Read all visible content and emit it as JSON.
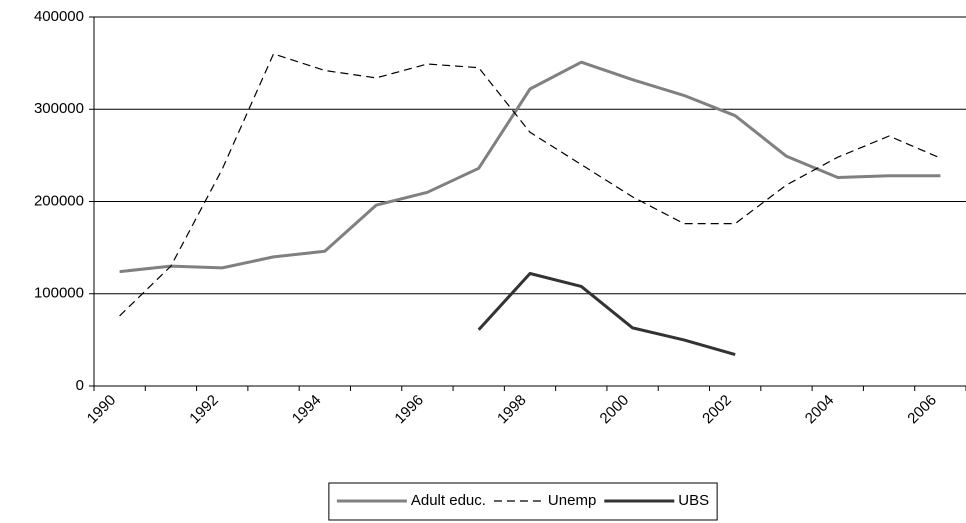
{
  "chart_data": {
    "type": "line",
    "categories": [
      "1990",
      null,
      "1992",
      null,
      "1994",
      null,
      "1996",
      null,
      "1998",
      null,
      "2000",
      null,
      "2002",
      null,
      "2004",
      null,
      "2006"
    ],
    "series": [
      {
        "name": "Adult educ.",
        "color": "#808080",
        "dashed": false,
        "values": [
          124000,
          130000,
          128000,
          140000,
          146000,
          196000,
          210000,
          236000,
          322000,
          351000,
          332000,
          315000,
          293000,
          249000,
          226000,
          228000,
          228000
        ]
      },
      {
        "name": "Unemp",
        "color": "#000000",
        "dashed": true,
        "values": [
          76000,
          130000,
          235000,
          360000,
          342000,
          334000,
          349000,
          345000,
          275000,
          240000,
          205000,
          176000,
          176000,
          218000,
          248000,
          271000,
          247000
        ]
      },
      {
        "name": "UBS",
        "color": "#333333",
        "dashed": false,
        "values": [
          null,
          null,
          null,
          null,
          null,
          null,
          null,
          61000,
          122000,
          108000,
          63000,
          50000,
          34000,
          null,
          null,
          null,
          null
        ]
      }
    ],
    "ylim": [
      0,
      400000
    ],
    "yticks": [
      0,
      100000,
      200000,
      300000,
      400000
    ],
    "grid": true,
    "legend": "bottom"
  }
}
